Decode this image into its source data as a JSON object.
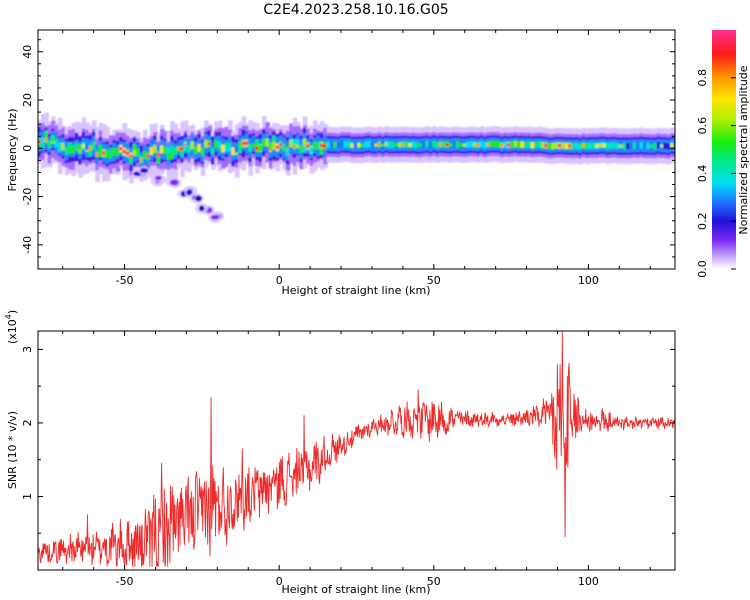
{
  "title": "C2E4.2023.258.10.16.G05",
  "chart_data": [
    {
      "type": "heatmap",
      "xlabel": "Height of straight line (km)",
      "ylabel": "Frequency (Hz)",
      "xlim": [
        -78,
        128
      ],
      "ylim": [
        -50,
        49
      ],
      "xticks": [
        -50,
        0,
        50,
        100
      ],
      "yticks": [
        -40,
        -20,
        0,
        20,
        40
      ],
      "colorbar": {
        "label": "Normalized spectral amplitude",
        "range": [
          0.0,
          1.0
        ],
        "ticks": [
          "0.0",
          "0.2",
          "0.4",
          "0.6",
          "0.8"
        ],
        "colors": [
          "#ffffff",
          "#c9a8ff",
          "#7b2cf2",
          "#2010d8",
          "#1f74ff",
          "#00e0f0",
          "#00e88a",
          "#16ee10",
          "#aaee00",
          "#ffe600",
          "#ff9800",
          "#ff1a1a",
          "#ff2f8f"
        ]
      },
      "ridge": [
        {
          "x": -75,
          "f": 2.0,
          "amp": 0.7
        },
        {
          "x": -60,
          "f": -1.0,
          "amp": 0.75
        },
        {
          "x": -45,
          "f": -3.0,
          "amp": 0.85
        },
        {
          "x": -30,
          "f": 0.0,
          "amp": 0.8
        },
        {
          "x": -20,
          "f": 0.0,
          "amp": 0.85
        },
        {
          "x": -10,
          "f": 1.0,
          "amp": 0.8
        },
        {
          "x": 0,
          "f": 0.5,
          "amp": 0.85
        },
        {
          "x": 10,
          "f": 1.0,
          "amp": 0.8
        },
        {
          "x": 20,
          "f": 1.5,
          "amp": 0.55
        },
        {
          "x": 40,
          "f": 1.5,
          "amp": 0.55
        },
        {
          "x": 60,
          "f": 1.5,
          "amp": 0.6
        },
        {
          "x": 80,
          "f": 1.5,
          "amp": 0.8
        },
        {
          "x": 90,
          "f": 1.0,
          "amp": 0.9
        },
        {
          "x": 100,
          "f": 1.0,
          "amp": 0.6
        },
        {
          "x": 115,
          "f": 1.0,
          "amp": 0.55
        },
        {
          "x": 128,
          "f": 1.0,
          "amp": 0.5
        }
      ],
      "branch": [
        {
          "x": -45,
          "f": -10
        },
        {
          "x": -40,
          "f": -13
        },
        {
          "x": -35,
          "f": -15
        },
        {
          "x": -30,
          "f": -18
        },
        {
          "x": -27,
          "f": -21
        },
        {
          "x": -24,
          "f": -25
        },
        {
          "x": -20,
          "f": -29
        }
      ]
    },
    {
      "type": "line",
      "xlabel": "Height of straight line (km)",
      "ylabel": "SNR (10 * v/v)",
      "y_multiplier": "(x10",
      "y_multiplier_exp": "4",
      "y_multiplier_close": ")",
      "xlim": [
        -78,
        128
      ],
      "ylim": [
        0,
        3.25
      ],
      "xticks": [
        -50,
        0,
        50,
        100
      ],
      "yticks": [
        1,
        2,
        3
      ],
      "color": "#ee2a2a",
      "envelope": [
        {
          "x": -78,
          "base": 0.25,
          "amp": 0.12
        },
        {
          "x": -60,
          "base": 0.3,
          "amp": 0.2
        },
        {
          "x": -45,
          "base": 0.35,
          "amp": 0.35
        },
        {
          "x": -38,
          "base": 0.5,
          "amp": 0.6
        },
        {
          "x": -30,
          "base": 0.7,
          "amp": 0.5
        },
        {
          "x": -22,
          "base": 0.85,
          "amp": 0.55
        },
        {
          "x": -10,
          "base": 1.0,
          "amp": 0.35
        },
        {
          "x": 0,
          "base": 1.2,
          "amp": 0.3
        },
        {
          "x": 10,
          "base": 1.4,
          "amp": 0.3
        },
        {
          "x": 20,
          "base": 1.7,
          "amp": 0.15
        },
        {
          "x": 30,
          "base": 1.95,
          "amp": 0.1
        },
        {
          "x": 40,
          "base": 2.05,
          "amp": 0.2
        },
        {
          "x": 50,
          "base": 2.05,
          "amp": 0.25
        },
        {
          "x": 60,
          "base": 2.05,
          "amp": 0.1
        },
        {
          "x": 75,
          "base": 2.05,
          "amp": 0.08
        },
        {
          "x": 85,
          "base": 2.1,
          "amp": 0.15
        },
        {
          "x": 92,
          "base": 1.9,
          "amp": 0.9
        },
        {
          "x": 98,
          "base": 2.05,
          "amp": 0.2
        },
        {
          "x": 110,
          "base": 2.0,
          "amp": 0.08
        },
        {
          "x": 128,
          "base": 2.0,
          "amp": 0.06
        }
      ],
      "peaks": [
        {
          "x": -62,
          "y": 0.75
        },
        {
          "x": -38,
          "y": 1.45
        },
        {
          "x": -22,
          "y": 2.35
        },
        {
          "x": -12,
          "y": 1.65
        },
        {
          "x": 8,
          "y": 2.1
        },
        {
          "x": 45,
          "y": 2.45
        },
        {
          "x": 90,
          "y": 2.8
        },
        {
          "x": 91.5,
          "y": 3.25
        },
        {
          "x": 92.5,
          "y": 0.45
        }
      ]
    }
  ]
}
